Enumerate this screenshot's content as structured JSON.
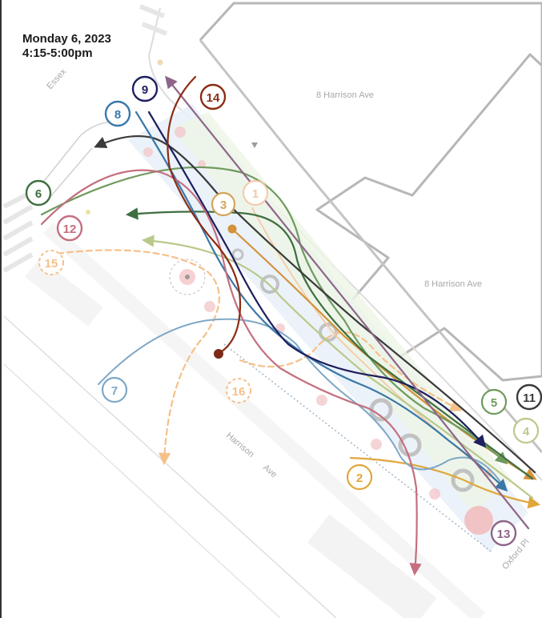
{
  "header": {
    "date": "Monday 6, 2023",
    "time": "4:15-5:00pm"
  },
  "street_labels": {
    "essex": "Essex",
    "harrison_ave_building": "8  Harrison  Ave",
    "harrison_ave_building_2": "8  Harrison  Ave",
    "harrison_street_1": "Harrison",
    "harrison_street_2": "Ave",
    "oxford": "Oxford  Pl"
  },
  "paths": [
    {
      "id": "1",
      "color": "#f5b99a",
      "style": "circle-only"
    },
    {
      "id": "2",
      "color": "#e0a73c",
      "style": "solid"
    },
    {
      "id": "3",
      "color": "#d4923a",
      "style": "solid"
    },
    {
      "id": "4",
      "color": "#b9c98a",
      "style": "solid"
    },
    {
      "id": "5",
      "color": "#6e9a5e",
      "style": "solid"
    },
    {
      "id": "6",
      "color": "#3e6f3f",
      "style": "solid"
    },
    {
      "id": "7",
      "color": "#7ea7c6",
      "style": "solid"
    },
    {
      "id": "8",
      "color": "#3a78a8",
      "style": "solid"
    },
    {
      "id": "9",
      "color": "#1d1f5e",
      "style": "solid"
    },
    {
      "id": "11",
      "color": "#3b3b3b",
      "style": "solid"
    },
    {
      "id": "12",
      "color": "#c46f7f",
      "style": "solid"
    },
    {
      "id": "13",
      "color": "#8e6589",
      "style": "solid"
    },
    {
      "id": "14",
      "color": "#8b2c14",
      "style": "solid"
    },
    {
      "id": "15",
      "color": "#f6c08a",
      "style": "dashed"
    },
    {
      "id": "16",
      "color": "#f6c08a",
      "style": "dashed"
    }
  ]
}
